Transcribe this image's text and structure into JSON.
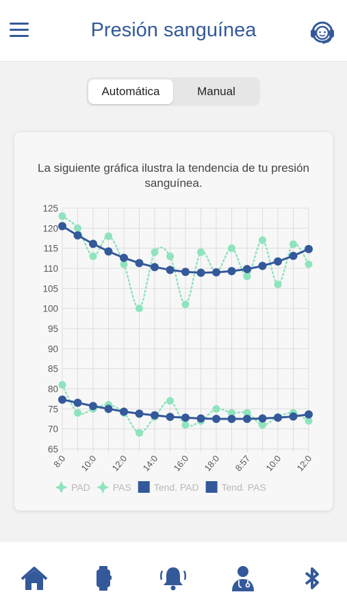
{
  "header": {
    "title": "Presión sanguínea",
    "menu_icon": "menu-icon",
    "support_icon": "headset-support-icon"
  },
  "mode_toggle": {
    "options": [
      "Automática",
      "Manual"
    ],
    "selected": "Automática"
  },
  "card": {
    "description": "La siguiente gráfica ilustra la tendencia de tu presión sanguínea."
  },
  "colors": {
    "primary": "#34599a",
    "measured": "#8fe3bd"
  },
  "chart_data": {
    "type": "line",
    "categories": [
      "8:0",
      "",
      "10:0",
      "",
      "12:0",
      "",
      "14:0",
      "",
      "16:0",
      "",
      "18:0",
      "",
      "8:57",
      "",
      "10:0",
      "",
      "12:0"
    ],
    "ylim": [
      65,
      125
    ],
    "y_ticks": [
      125,
      120,
      115,
      110,
      105,
      100,
      95,
      90,
      85,
      80,
      75,
      70,
      65
    ],
    "grid": true,
    "legend_position": "bottom",
    "series": [
      {
        "name": "PAD",
        "style": "dotted",
        "color": "#8fe3bd",
        "values": [
          81,
          74,
          75,
          76,
          74,
          69,
          73,
          77,
          71,
          72,
          75,
          74,
          74,
          71,
          73,
          74,
          72
        ]
      },
      {
        "name": "PAS",
        "style": "dotted",
        "color": "#8fe3bd",
        "values": [
          123,
          120,
          113,
          118,
          111,
          100,
          114,
          113,
          101,
          114,
          109,
          115,
          108,
          117,
          106,
          116,
          111
        ]
      },
      {
        "name": "Tend. PAD",
        "style": "solid",
        "color": "#34599a",
        "values": [
          77.3,
          76.5,
          75.7,
          75.0,
          74.3,
          73.8,
          73.4,
          73.0,
          72.8,
          72.6,
          72.5,
          72.5,
          72.5,
          72.6,
          72.8,
          73.1,
          73.6
        ]
      },
      {
        "name": "Tend. PAS",
        "style": "solid",
        "color": "#34599a",
        "values": [
          120.5,
          118.2,
          116.1,
          114.2,
          112.6,
          111.3,
          110.3,
          109.6,
          109.1,
          108.9,
          109.0,
          109.3,
          109.8,
          110.6,
          111.7,
          113.1,
          114.8
        ]
      }
    ]
  },
  "bottom_nav": [
    {
      "name": "home-icon"
    },
    {
      "name": "smartwatch-icon"
    },
    {
      "name": "bell-alarm-icon"
    },
    {
      "name": "doctor-icon"
    },
    {
      "name": "bluetooth-icon"
    }
  ]
}
